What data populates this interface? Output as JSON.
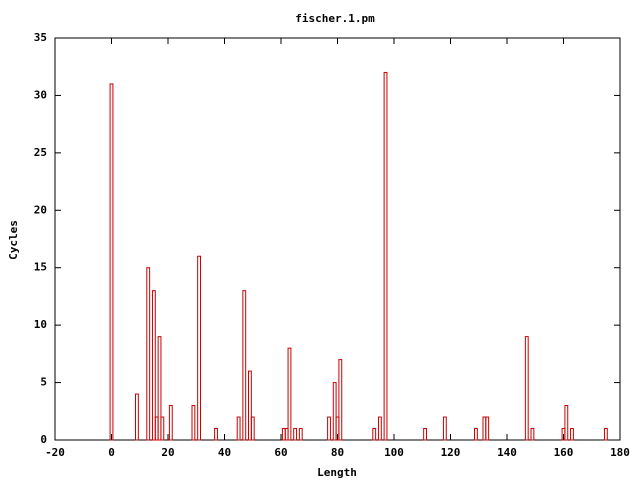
{
  "chart_data": {
    "type": "bar",
    "title": "fischer.1.pm",
    "x_label": "Length",
    "y_label": "Cycles",
    "x": [
      0,
      9,
      13,
      15,
      16,
      17,
      18,
      21,
      29,
      31,
      37,
      45,
      47,
      49,
      50,
      61,
      62,
      63,
      65,
      67,
      77,
      79,
      80,
      81,
      93,
      95,
      97,
      111,
      118,
      129,
      132,
      133,
      147,
      149,
      160,
      161,
      163,
      175
    ],
    "values": [
      31,
      4,
      15,
      13,
      2,
      9,
      2,
      3,
      3,
      16,
      1,
      2,
      13,
      6,
      2,
      1,
      1,
      8,
      1,
      1,
      2,
      5,
      2,
      7,
      1,
      2,
      32,
      1,
      2,
      1,
      2,
      2,
      9,
      1,
      1,
      3,
      1,
      1
    ],
    "color": "#cc0000",
    "xlim": [
      -20,
      180
    ],
    "xticks": [
      -20,
      0,
      20,
      40,
      60,
      80,
      100,
      120,
      140,
      160,
      180
    ],
    "ylim": [
      0,
      35
    ],
    "yticks": [
      0,
      5,
      10,
      15,
      20,
      25,
      30,
      35
    ]
  }
}
